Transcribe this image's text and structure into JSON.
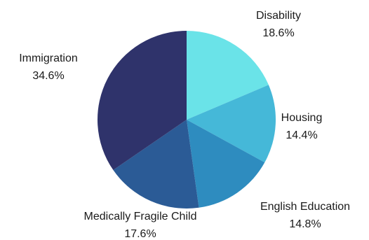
{
  "chart_data": {
    "type": "pie",
    "title": "",
    "slices": [
      {
        "label": "Disability",
        "value": 18.6,
        "display": "18.6%",
        "color": "#6AE3E8"
      },
      {
        "label": "Housing",
        "value": 14.4,
        "display": "14.4%",
        "color": "#45B8D8"
      },
      {
        "label": "English Education",
        "value": 14.8,
        "display": "14.8%",
        "color": "#2E8CBF"
      },
      {
        "label": "Medically Fragile Child",
        "value": 17.6,
        "display": "17.6%",
        "color": "#2B5B96"
      },
      {
        "label": "Immigration",
        "value": 34.6,
        "display": "34.6%",
        "color": "#2F336B"
      }
    ]
  }
}
